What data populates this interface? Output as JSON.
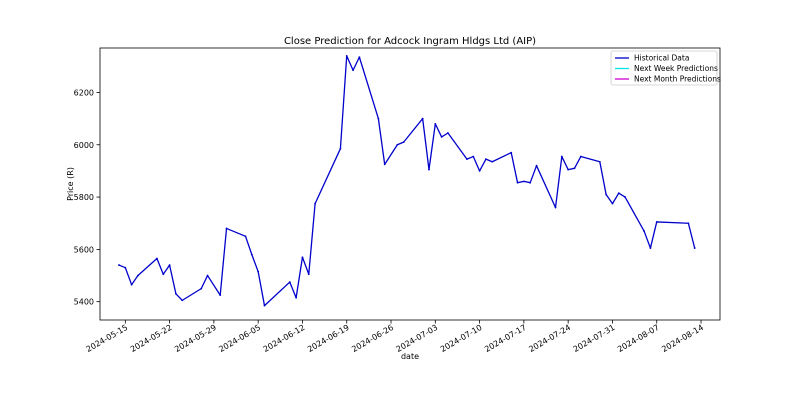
{
  "chart_data": {
    "type": "line",
    "title": "Close Prediction for Adcock Ingram Hldgs Ltd (AIP)",
    "xlabel": "date",
    "ylabel": "Price (R)",
    "xlim": [
      "2024-05-11",
      "2024-08-17"
    ],
    "ylim": [
      5330,
      6370
    ],
    "x_ticks": [
      "2024-05-15",
      "2024-05-22",
      "2024-05-29",
      "2024-06-05",
      "2024-06-12",
      "2024-06-19",
      "2024-06-26",
      "2024-07-03",
      "2024-07-10",
      "2024-07-17",
      "2024-07-24",
      "2024-07-31",
      "2024-08-07",
      "2024-08-14"
    ],
    "y_ticks": [
      5400,
      5600,
      5800,
      6000,
      6200
    ],
    "grid": false,
    "legend_position": "top-right",
    "series": [
      {
        "name": "Historical Data",
        "color": "#0000cc",
        "x": [
          "2024-05-14",
          "2024-05-15",
          "2024-05-16",
          "2024-05-17",
          "2024-05-20",
          "2024-05-21",
          "2024-05-22",
          "2024-05-23",
          "2024-05-24",
          "2024-05-27",
          "2024-05-28",
          "2024-05-30",
          "2024-05-31",
          "2024-06-03",
          "2024-06-04",
          "2024-06-05",
          "2024-06-06",
          "2024-06-10",
          "2024-06-11",
          "2024-06-12",
          "2024-06-13",
          "2024-06-14",
          "2024-06-18",
          "2024-06-19",
          "2024-06-20",
          "2024-06-21",
          "2024-06-24",
          "2024-06-25",
          "2024-06-27",
          "2024-06-28",
          "2024-07-01",
          "2024-07-02",
          "2024-07-03",
          "2024-07-04",
          "2024-07-05",
          "2024-07-08",
          "2024-07-09",
          "2024-07-10",
          "2024-07-11",
          "2024-07-12",
          "2024-07-15",
          "2024-07-16",
          "2024-07-17",
          "2024-07-18",
          "2024-07-19",
          "2024-07-22",
          "2024-07-23",
          "2024-07-24",
          "2024-07-25",
          "2024-07-26",
          "2024-07-29",
          "2024-07-30",
          "2024-07-31",
          "2024-08-01",
          "2024-08-02",
          "2024-08-05",
          "2024-08-06",
          "2024-08-07",
          "2024-08-12",
          "2024-08-13"
        ],
        "values": [
          5540,
          5530,
          5465,
          5500,
          5565,
          5505,
          5540,
          5430,
          5405,
          5450,
          5500,
          5425,
          5680,
          5650,
          5580,
          5515,
          5385,
          5475,
          5415,
          5570,
          5505,
          5775,
          5985,
          6340,
          6285,
          6335,
          6100,
          5925,
          6000,
          6010,
          6100,
          5905,
          6080,
          6030,
          6045,
          5945,
          5955,
          5900,
          5945,
          5935,
          5970,
          5855,
          5860,
          5855,
          5920,
          5760,
          5955,
          5905,
          5910,
          5955,
          5935,
          5810,
          5775,
          5815,
          5800,
          5670,
          5605,
          5705,
          5700,
          5605
        ]
      },
      {
        "name": "Next Week Predictions",
        "color": "#00e5e5",
        "x": [],
        "values": []
      },
      {
        "name": "Next Month Predictions",
        "color": "#cc00cc",
        "x": [],
        "values": []
      }
    ]
  }
}
